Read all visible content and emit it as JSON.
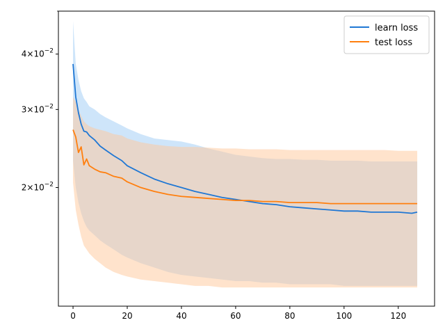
{
  "chart_data": {
    "type": "line",
    "title": "",
    "xlabel": "",
    "ylabel": "",
    "y_scale": "log",
    "xlim": [
      -5.4,
      133.4
    ],
    "ylim": [
      0.0108,
      0.05
    ],
    "x_ticks": [
      0,
      20,
      40,
      60,
      80,
      100,
      120
    ],
    "x_tick_labels": [
      "0",
      "20",
      "40",
      "60",
      "80",
      "100",
      "120"
    ],
    "y_ticks": [
      0.02,
      0.03,
      0.04
    ],
    "y_tick_labels": [
      {
        "base": "2",
        "exp": "−2"
      },
      {
        "base": "3",
        "exp": "−2"
      },
      {
        "base": "4",
        "exp": "−2"
      }
    ],
    "times_sign": "×10",
    "legend_position": "top-right",
    "grid": false,
    "series": [
      {
        "name": "learn loss",
        "color": "#1f77d4",
        "band_color": "#a6cff5",
        "x": [
          0,
          1,
          2,
          3,
          4,
          5,
          6,
          8,
          10,
          12,
          15,
          18,
          20,
          25,
          30,
          35,
          40,
          45,
          50,
          55,
          60,
          65,
          70,
          75,
          80,
          85,
          90,
          95,
          100,
          105,
          110,
          115,
          120,
          125,
          127
        ],
        "mean": [
          0.038,
          0.032,
          0.0295,
          0.0278,
          0.0268,
          0.0267,
          0.0262,
          0.0256,
          0.0248,
          0.0243,
          0.0236,
          0.023,
          0.0224,
          0.0216,
          0.0209,
          0.0204,
          0.02,
          0.0196,
          0.0193,
          0.019,
          0.0188,
          0.0186,
          0.0184,
          0.0183,
          0.0181,
          0.018,
          0.0179,
          0.0178,
          0.0177,
          0.0177,
          0.0176,
          0.0176,
          0.0176,
          0.0175,
          0.0176
        ],
        "upper": [
          0.0475,
          0.038,
          0.035,
          0.033,
          0.0318,
          0.0312,
          0.0305,
          0.03,
          0.0293,
          0.0288,
          0.0282,
          0.0276,
          0.0272,
          0.0264,
          0.0258,
          0.0256,
          0.0254,
          0.025,
          0.0245,
          0.0241,
          0.0237,
          0.0235,
          0.0233,
          0.0232,
          0.0232,
          0.0231,
          0.0231,
          0.023,
          0.023,
          0.023,
          0.0229,
          0.0229,
          0.0229,
          0.0229,
          0.0229
        ],
        "lower": [
          0.023,
          0.02,
          0.0185,
          0.0175,
          0.0168,
          0.0163,
          0.016,
          0.0156,
          0.0152,
          0.0149,
          0.0145,
          0.0141,
          0.0139,
          0.0135,
          0.0132,
          0.0129,
          0.0127,
          0.0126,
          0.0125,
          0.0124,
          0.0123,
          0.0123,
          0.0122,
          0.0122,
          0.0121,
          0.0121,
          0.0121,
          0.0121,
          0.012,
          0.012,
          0.012,
          0.012,
          0.012,
          0.012,
          0.012
        ]
      },
      {
        "name": "test loss",
        "color": "#ff7f0e",
        "band_color": "#ffc79a",
        "x": [
          0,
          1,
          2,
          3,
          4,
          5,
          6,
          8,
          10,
          12,
          15,
          18,
          20,
          25,
          30,
          35,
          40,
          45,
          50,
          55,
          60,
          65,
          70,
          75,
          80,
          85,
          90,
          95,
          100,
          105,
          110,
          115,
          120,
          125,
          127
        ],
        "mean": [
          0.027,
          0.026,
          0.024,
          0.0247,
          0.0225,
          0.0232,
          0.0224,
          0.022,
          0.0217,
          0.0216,
          0.0212,
          0.021,
          0.0206,
          0.02,
          0.0196,
          0.0193,
          0.0191,
          0.019,
          0.0189,
          0.0188,
          0.0187,
          0.0187,
          0.0186,
          0.0186,
          0.0185,
          0.0185,
          0.0185,
          0.0184,
          0.0184,
          0.0184,
          0.0184,
          0.0184,
          0.0184,
          0.0184,
          0.0184
        ],
        "upper": [
          0.032,
          0.0312,
          0.03,
          0.029,
          0.0282,
          0.0278,
          0.0275,
          0.0272,
          0.027,
          0.0268,
          0.0264,
          0.0262,
          0.0258,
          0.0253,
          0.025,
          0.0248,
          0.0247,
          0.0247,
          0.0246,
          0.0245,
          0.0245,
          0.0244,
          0.0244,
          0.0244,
          0.0243,
          0.0243,
          0.0243,
          0.0243,
          0.0243,
          0.0243,
          0.0243,
          0.0243,
          0.0242,
          0.0242,
          0.0242
        ],
        "lower": [
          0.0205,
          0.0178,
          0.0165,
          0.0155,
          0.0148,
          0.0145,
          0.0142,
          0.0138,
          0.0135,
          0.0132,
          0.0129,
          0.0127,
          0.0126,
          0.0124,
          0.0123,
          0.0122,
          0.0121,
          0.012,
          0.012,
          0.0119,
          0.0119,
          0.0119,
          0.0119,
          0.0119,
          0.0119,
          0.0119,
          0.0119,
          0.0119,
          0.0119,
          0.0119,
          0.0119,
          0.0119,
          0.0119,
          0.0119,
          0.0119
        ]
      }
    ]
  }
}
